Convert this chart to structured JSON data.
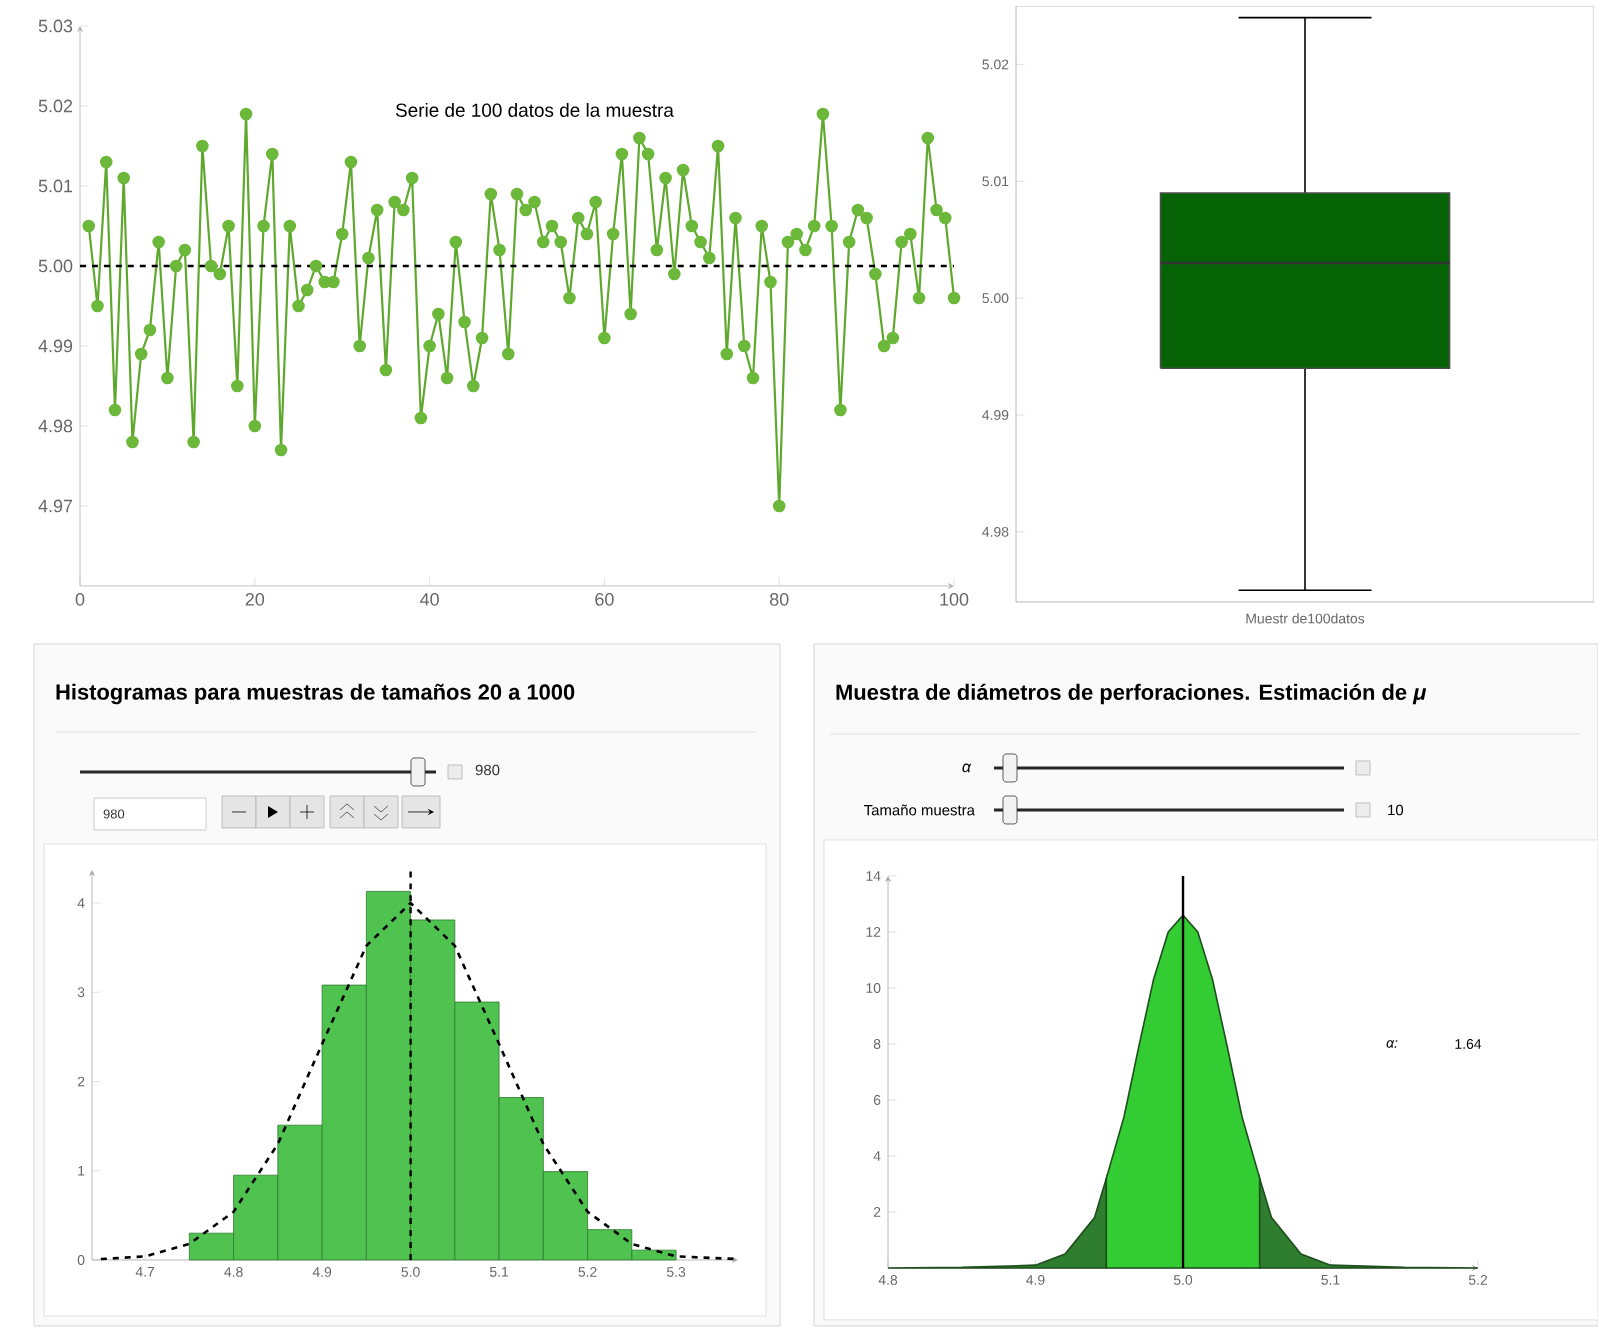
{
  "chart_data": [
    {
      "type": "line",
      "title": "Serie de 100 datos de la muestra",
      "marker": "circle",
      "line_style": "solid",
      "x": [
        1,
        2,
        3,
        4,
        5,
        6,
        7,
        8,
        9,
        10,
        11,
        12,
        13,
        14,
        15,
        16,
        17,
        18,
        19,
        20,
        21,
        22,
        23,
        24,
        25,
        26,
        27,
        28,
        29,
        30,
        31,
        32,
        33,
        34,
        35,
        36,
        37,
        38,
        39,
        40,
        41,
        42,
        43,
        44,
        45,
        46,
        47,
        48,
        49,
        50,
        51,
        52,
        53,
        54,
        55,
        56,
        57,
        58,
        59,
        60,
        61,
        62,
        63,
        64,
        65,
        66,
        67,
        68,
        69,
        70,
        71,
        72,
        73,
        74,
        75,
        76,
        77,
        78,
        79,
        80,
        81,
        82,
        83,
        84,
        85,
        86,
        87,
        88,
        89,
        90,
        91,
        92,
        93,
        94,
        95,
        96,
        97,
        98,
        99,
        100
      ],
      "series": [
        {
          "color": "#5fa82e",
          "values": [
            5.005,
            4.995,
            5.013,
            4.982,
            5.011,
            4.978,
            4.989,
            4.992,
            5.003,
            4.986,
            5.0,
            5.002,
            4.978,
            5.015,
            5.0,
            4.999,
            5.005,
            4.985,
            5.019,
            4.98,
            5.005,
            5.014,
            4.977,
            5.005,
            4.995,
            4.997,
            5.0,
            4.998,
            4.998,
            5.004,
            5.013,
            4.99,
            5.001,
            5.007,
            4.987,
            5.008,
            5.007,
            5.011,
            4.981,
            4.99,
            4.994,
            4.986,
            5.003,
            4.993,
            4.985,
            4.991,
            5.009,
            5.002,
            4.989,
            5.009,
            5.007,
            5.008,
            5.003,
            5.005,
            5.003,
            4.996,
            5.006,
            5.004,
            5.008,
            4.991,
            5.004,
            5.014,
            4.994,
            5.016,
            5.014,
            5.002,
            5.011,
            4.999,
            5.012,
            5.005,
            5.003,
            5.001,
            5.015,
            4.989,
            5.006,
            4.99,
            4.986,
            5.005,
            4.998,
            4.97,
            5.003,
            5.004,
            5.002,
            5.005,
            5.019,
            5.005,
            4.982,
            5.003,
            5.007,
            5.006,
            4.999,
            4.99,
            4.991,
            5.003,
            5.004,
            4.996,
            5.016,
            5.007,
            5.006,
            4.996
          ]
        }
      ],
      "xlim": [
        0,
        100
      ],
      "ylim": [
        4.96,
        5.03
      ],
      "xticks": [
        0,
        20,
        40,
        60,
        80,
        100
      ],
      "yticks": [
        4.97,
        4.98,
        4.99,
        {
          "value": 5.0,
          "label": "5.00"
        },
        5.01,
        5.02,
        5.03
      ],
      "ref_lines": [
        {
          "axis": "y",
          "value": 5.0,
          "line_style": "dashed",
          "color": "#000000"
        }
      ]
    },
    {
      "type": "box",
      "categories": [
        "Muestr de100datos"
      ],
      "color": "#056305",
      "boxes": [
        {
          "low": 4.975,
          "q1": 4.994,
          "median": 5.003,
          "q3": 5.009,
          "high": 5.024
        }
      ],
      "ylim": [
        4.974,
        5.025
      ],
      "yticks": [
        4.98,
        4.99,
        {
          "value": 5.0,
          "label": "5.00"
        },
        5.01,
        5.02
      ]
    },
    {
      "type": "histogram",
      "title": "Histogramas para muestras de tamaños 20 a 1000",
      "annotations": [
        "980",
        "980"
      ],
      "series": [
        {
          "type": "histogram",
          "color": "#4fc24f",
          "bins": [
            4.75,
            4.8,
            4.85,
            4.9,
            4.95,
            5.0,
            5.05,
            5.1,
            5.15,
            5.2,
            5.25,
            5.3
          ],
          "values": [
            0.3,
            0.95,
            1.51,
            3.08,
            4.13,
            3.81,
            2.89,
            1.82,
            0.99,
            0.34,
            0.11
          ]
        },
        {
          "type": "line",
          "color": "#000000",
          "line_style": "dashed",
          "x": [
            4.65,
            4.7,
            4.75,
            4.8,
            4.85,
            4.9,
            4.95,
            5.0,
            5.05,
            5.1,
            5.15,
            5.2,
            5.25,
            5.3,
            5.37
          ],
          "values": [
            0.01,
            0.04,
            0.18,
            0.54,
            1.3,
            2.42,
            3.52,
            4.0,
            3.52,
            2.42,
            1.3,
            0.54,
            0.18,
            0.04,
            0.01
          ]
        }
      ],
      "xlim": [
        4.64,
        5.37
      ],
      "ylim": [
        0,
        4.37
      ],
      "xticks": [
        4.7,
        4.8,
        4.9,
        {
          "value": 5.0,
          "label": "5.0"
        },
        5.1,
        5.2,
        5.3
      ],
      "yticks": [
        0,
        1,
        2,
        3,
        4
      ],
      "ref_lines": [
        {
          "axis": "x",
          "value": 5.0,
          "line_style": "dashed",
          "color": "#000000"
        }
      ]
    },
    {
      "type": "area",
      "title": "Muestra de diámetros de perforaciones. Estimación de *μ*",
      "annotations": [
        "α",
        "Tamaño muestra",
        "10",
        "α:",
        "1.64"
      ],
      "series": [
        {
          "color": "#2f7d2f",
          "x": [
            4.8,
            4.85,
            4.9,
            4.92,
            4.94,
            4.948
          ],
          "values": [
            0,
            0.02,
            0.1,
            0.5,
            1.8,
            3.2
          ]
        },
        {
          "color": "#33cc33",
          "x": [
            4.948,
            4.96,
            4.97,
            4.98,
            4.99,
            5.0,
            5.01,
            5.02,
            5.03,
            5.04,
            5.052
          ],
          "values": [
            3.2,
            5.4,
            7.9,
            10.3,
            12.0,
            12.6,
            12.0,
            10.3,
            7.9,
            5.4,
            3.2
          ]
        },
        {
          "color": "#2f7d2f",
          "x": [
            5.052,
            5.06,
            5.08,
            5.1,
            5.15,
            5.2
          ],
          "values": [
            3.2,
            1.8,
            0.5,
            0.1,
            0.02,
            0
          ]
        }
      ],
      "xlim": [
        4.8,
        5.2
      ],
      "ylim": [
        0,
        14
      ],
      "xticks": [
        4.8,
        4.9,
        {
          "value": 5.0,
          "label": "5.0"
        },
        5.1,
        5.2
      ],
      "yticks": [
        2,
        4,
        6,
        8,
        10,
        12,
        14
      ],
      "ref_lines": [
        {
          "axis": "x",
          "value": 5.0,
          "line_style": "solid",
          "color": "#000000"
        }
      ]
    }
  ]
}
